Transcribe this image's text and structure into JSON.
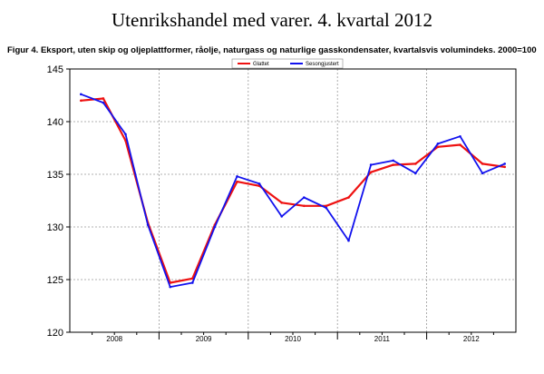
{
  "page": {
    "title": "Utenrikshandel med varer. 4. kvartal 2012",
    "caption": "Figur 4. Eksport, uten skip og oljeplattformer, råolje, naturgass og naturlige gasskondensater, kvartalsvis volumindeks. 2000=100"
  },
  "chart_data": {
    "type": "line",
    "title": "",
    "xlabel": "",
    "ylabel": "",
    "ylim": [
      120,
      145
    ],
    "yticks": [
      120,
      125,
      130,
      135,
      140,
      145
    ],
    "grid": true,
    "legend_position": "top-center",
    "year_groups": [
      "2008",
      "2009",
      "2010",
      "2011",
      "2012"
    ],
    "x": [
      "2008K1",
      "2008K2",
      "2008K3",
      "2008K4",
      "2009K1",
      "2009K2",
      "2009K3",
      "2009K4",
      "2010K1",
      "2010K2",
      "2010K3",
      "2010K4",
      "2011K1",
      "2011K2",
      "2011K3",
      "2011K4",
      "2012K1",
      "2012K2",
      "2012K3",
      "2012K4"
    ],
    "series": [
      {
        "name": "Glattet",
        "color": "#ee1111",
        "values": [
          142.0,
          142.2,
          138.2,
          130.4,
          124.7,
          125.1,
          130.2,
          134.3,
          133.9,
          132.3,
          132.0,
          132.0,
          132.8,
          135.2,
          135.9,
          136.0,
          137.6,
          137.8,
          136.0,
          135.7
        ]
      },
      {
        "name": "Sesongjustert",
        "color": "#1111ee",
        "values": [
          142.6,
          141.8,
          138.8,
          130.2,
          124.3,
          124.7,
          130.0,
          134.8,
          134.1,
          131.0,
          132.8,
          131.8,
          128.7,
          135.9,
          136.3,
          135.1,
          137.9,
          138.6,
          135.1,
          136.0
        ]
      }
    ]
  }
}
